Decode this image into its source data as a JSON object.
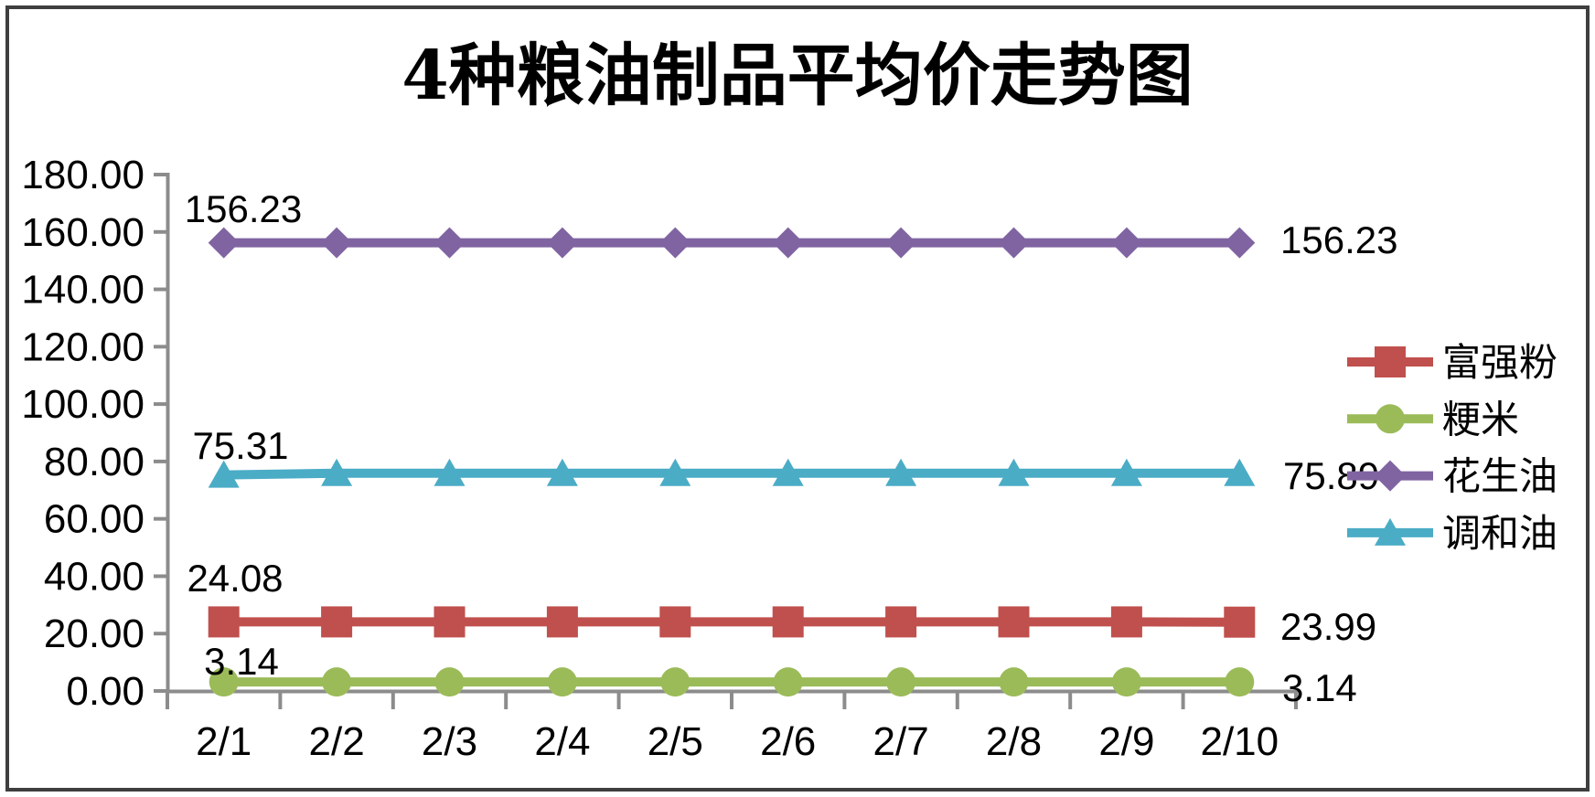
{
  "title": "4种粮油制品平均价走势图",
  "chart_data": {
    "type": "line",
    "x": [
      "2/1",
      "2/2",
      "2/3",
      "2/4",
      "2/5",
      "2/6",
      "2/7",
      "2/8",
      "2/9",
      "2/10"
    ],
    "series": [
      {
        "name": "富强粉",
        "color": "#C0504D",
        "marker": "square",
        "values": [
          24.08,
          24.08,
          24.08,
          24.08,
          24.08,
          24.08,
          24.08,
          24.08,
          24.08,
          23.99
        ],
        "first_label": "24.08",
        "last_label": "23.99"
      },
      {
        "name": "粳米",
        "color": "#9BBB59",
        "marker": "circle",
        "values": [
          3.14,
          3.14,
          3.14,
          3.14,
          3.14,
          3.14,
          3.14,
          3.14,
          3.14,
          3.14
        ],
        "first_label": "3.14",
        "last_label": "3.14"
      },
      {
        "name": "花生油",
        "color": "#8064A2",
        "marker": "diamond",
        "values": [
          156.23,
          156.23,
          156.23,
          156.23,
          156.23,
          156.23,
          156.23,
          156.23,
          156.23,
          156.23
        ],
        "first_label": "156.23",
        "last_label": "156.23"
      },
      {
        "name": "调和油",
        "color": "#4BACC6",
        "marker": "triangle",
        "values": [
          75.31,
          75.89,
          75.89,
          75.89,
          75.89,
          75.89,
          75.89,
          75.89,
          75.89,
          75.89
        ],
        "first_label": "75.31",
        "last_label": "75.89"
      }
    ],
    "yticks": [
      "0.00",
      "20.00",
      "40.00",
      "60.00",
      "80.00",
      "100.00",
      "120.00",
      "140.00",
      "160.00",
      "180.00"
    ],
    "ylim": [
      0,
      180
    ],
    "grid": false,
    "legend_position": "right"
  }
}
